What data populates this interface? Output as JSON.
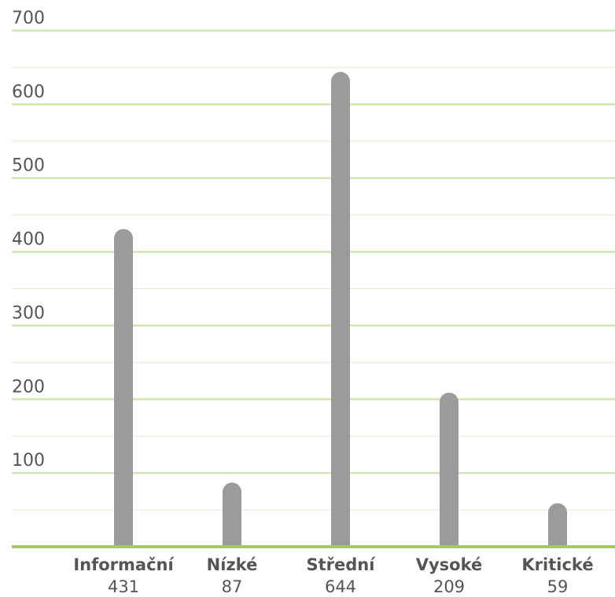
{
  "chart_data": {
    "type": "bar",
    "categories": [
      "Informační",
      "Nízké",
      "Střední",
      "Vysoké",
      "Kritické"
    ],
    "values": [
      431,
      87,
      644,
      209,
      59
    ],
    "color": "#9b9b9b",
    "ylim": [
      0,
      700
    ],
    "yticks": [
      100,
      200,
      300,
      400,
      500,
      600,
      700
    ],
    "grid": true
  }
}
